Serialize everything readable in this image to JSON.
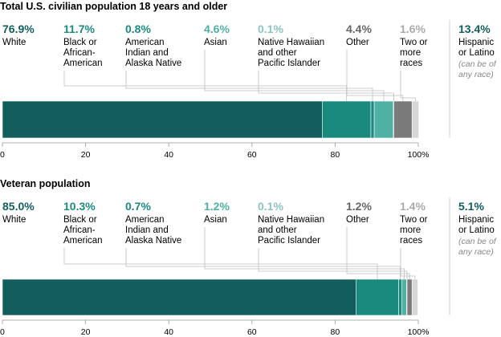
{
  "colors": {
    "White": "#115e5c",
    "Black or African-American": "#1b8a7e",
    "American Indian and Alaska Native": "#1b8a7e",
    "Asian": "#4fb0a4",
    "Native Hawaiian and other Pacific Islander": "#8dc4bf",
    "Other": "#7a7a7a",
    "Two or more races": "#d6d6d6",
    "Hispanic or Latino": "#115e5c",
    "pct_text": {
      "White": "#115e5c",
      "Black or African-American": "#1b8a7e",
      "American Indian and Alaska Native": "#1b8a7e",
      "Asian": "#4fb0a4",
      "Native Hawaiian and other Pacific Islander": "#8dc4bf",
      "Other": "#666666",
      "Two or more races": "#aaaaaa",
      "Hispanic or Latino": "#115e5c"
    }
  },
  "hispanic_note": [
    "(can be of",
    "any race)"
  ],
  "chart_data": [
    {
      "type": "bar",
      "orientation": "horizontal-stacked",
      "title": "Total U.S. civilian population 18 years and older",
      "xlim": [
        0,
        100
      ],
      "ticks": [
        "0",
        "20",
        "40",
        "60",
        "80",
        "100%"
      ],
      "categories": [
        {
          "name": "White",
          "label": [
            "White"
          ],
          "value": 76.9,
          "pct": "76.9%"
        },
        {
          "name": "Black or African-American",
          "label": [
            "Black or",
            "African-",
            "American"
          ],
          "value": 11.7,
          "pct": "11.7%"
        },
        {
          "name": "American Indian and Alaska Native",
          "label": [
            "American",
            "Indian and",
            "Alaska Native"
          ],
          "value": 0.8,
          "pct": "0.8%"
        },
        {
          "name": "Asian",
          "label": [
            "Asian"
          ],
          "value": 4.6,
          "pct": "4.6%"
        },
        {
          "name": "Native Hawaiian and other Pacific Islander",
          "label": [
            "Native Hawaiian",
            "and other",
            "Pacific Islander"
          ],
          "value": 0.1,
          "pct": "0.1%"
        },
        {
          "name": "Other",
          "label": [
            "Other"
          ],
          "value": 4.4,
          "pct": "4.4%"
        },
        {
          "name": "Two or more races",
          "label": [
            "Two or",
            "more",
            "races"
          ],
          "value": 1.6,
          "pct": "1.6%"
        }
      ],
      "hispanic": {
        "name": "Hispanic or Latino",
        "label": [
          "Hispanic",
          "or Latino"
        ],
        "value": 13.4,
        "pct": "13.4%"
      }
    },
    {
      "type": "bar",
      "orientation": "horizontal-stacked",
      "title": "Veteran population",
      "xlim": [
        0,
        100
      ],
      "ticks": [
        "0",
        "20",
        "40",
        "60",
        "80",
        "100%"
      ],
      "categories": [
        {
          "name": "White",
          "label": [
            "White"
          ],
          "value": 85.0,
          "pct": "85.0%"
        },
        {
          "name": "Black or African-American",
          "label": [
            "Black or",
            "African-",
            "American"
          ],
          "value": 10.3,
          "pct": "10.3%"
        },
        {
          "name": "American Indian and Alaska Native",
          "label": [
            "American",
            "Indian and",
            "Alaska Native"
          ],
          "value": 0.7,
          "pct": "0.7%"
        },
        {
          "name": "Asian",
          "label": [
            "Asian"
          ],
          "value": 1.2,
          "pct": "1.2%"
        },
        {
          "name": "Native Hawaiian and other Pacific Islander",
          "label": [
            "Native Hawaiian",
            "and other",
            "Pacific Islander"
          ],
          "value": 0.1,
          "pct": "0.1%"
        },
        {
          "name": "Other",
          "label": [
            "Other"
          ],
          "value": 1.2,
          "pct": "1.2%"
        },
        {
          "name": "Two or more races",
          "label": [
            "Two or",
            "more",
            "races"
          ],
          "value": 1.4,
          "pct": "1.4%"
        }
      ],
      "hispanic": {
        "name": "Hispanic or Latino",
        "label": [
          "Hispanic",
          "or Latino"
        ],
        "value": 5.1,
        "pct": "5.1%"
      }
    }
  ]
}
